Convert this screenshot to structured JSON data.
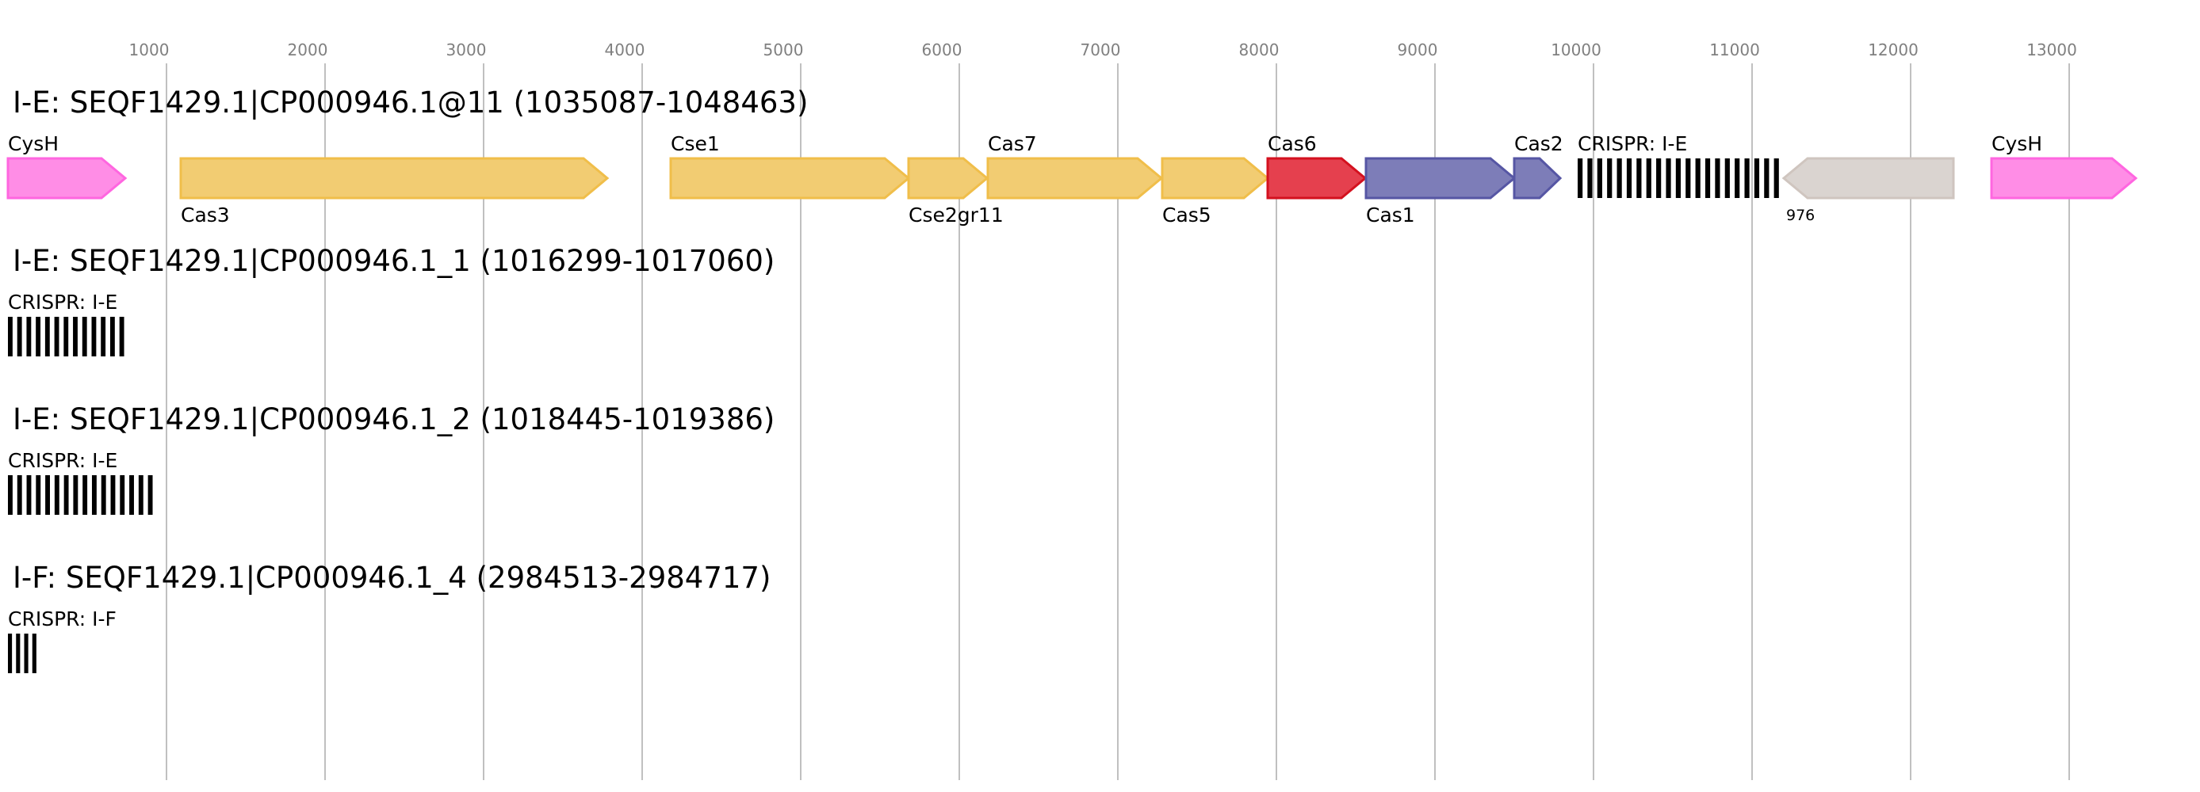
{
  "axis": {
    "ticks": [
      1000,
      2000,
      3000,
      4000,
      5000,
      6000,
      7000,
      8000,
      9000,
      10000,
      11000,
      12000,
      13000
    ],
    "tick_labels": [
      "1000",
      "2000",
      "3000",
      "4000",
      "5000",
      "6000",
      "7000",
      "8000",
      "9000",
      "10000",
      "11000",
      "12000",
      "13000"
    ]
  },
  "tracks": [
    {
      "title": "I-E: SEQF1429.1|CP000946.1@11 (1035087-1048463)",
      "features": [
        {
          "label": "CysH",
          "start": 0,
          "end": 740,
          "strand": 1,
          "type": "gene",
          "color": "#ff8de6",
          "stroke": "#ff66e0",
          "label_pos": "above"
        },
        {
          "label": "Cas3",
          "start": 1090,
          "end": 3780,
          "strand": 1,
          "type": "gene",
          "color": "#f2cc72",
          "stroke": "#f0be4a",
          "label_pos": "below"
        },
        {
          "label": "Cse1",
          "start": 4180,
          "end": 5680,
          "strand": 1,
          "type": "gene",
          "color": "#f2cc72",
          "stroke": "#f0be4a",
          "label_pos": "above"
        },
        {
          "label": "Cse2gr11",
          "start": 5680,
          "end": 6175,
          "strand": 1,
          "type": "gene",
          "color": "#f2cc72",
          "stroke": "#f0be4a",
          "label_pos": "below"
        },
        {
          "label": "Cas7",
          "start": 6180,
          "end": 7275,
          "strand": 1,
          "type": "gene",
          "color": "#f2cc72",
          "stroke": "#f0be4a",
          "label_pos": "above"
        },
        {
          "label": "Cas5",
          "start": 7280,
          "end": 7945,
          "strand": 1,
          "type": "gene",
          "color": "#f2cc72",
          "stroke": "#f0be4a",
          "label_pos": "below"
        },
        {
          "label": "Cas6",
          "start": 7945,
          "end": 8560,
          "strand": 1,
          "type": "gene",
          "color": "#e5404e",
          "stroke": "#d4111f",
          "label_pos": "above"
        },
        {
          "label": "Cas1",
          "start": 8565,
          "end": 9500,
          "strand": 1,
          "type": "gene",
          "color": "#7d7db8",
          "stroke": "#5656a4",
          "label_pos": "below"
        },
        {
          "label": "Cas2",
          "start": 9500,
          "end": 9790,
          "strand": 1,
          "type": "gene",
          "color": "#7d7db8",
          "stroke": "#5656a4",
          "label_pos": "above"
        },
        {
          "label": "CRISPR: I-E",
          "start": 9900,
          "end": 11200,
          "strand": 0,
          "type": "crispr",
          "bars": 21,
          "label_pos": "above"
        },
        {
          "label": "976",
          "start": 11200,
          "end": 12270,
          "strand": -1,
          "type": "gene",
          "color": "#dad4d0",
          "stroke": "#cfc5bf",
          "label_pos": "below-left-small"
        },
        {
          "label": "CysH",
          "start": 12510,
          "end": 13420,
          "strand": 1,
          "type": "gene",
          "color": "#ff8de6",
          "stroke": "#ff66e0",
          "label_pos": "above"
        }
      ]
    },
    {
      "title": "I-E: SEQF1429.1|CP000946.1_1 (1016299-1017060)",
      "features": [
        {
          "label": "CRISPR: I-E",
          "start": 0,
          "end": 762,
          "strand": 0,
          "type": "crispr",
          "bars": 13,
          "label_pos": "above"
        }
      ]
    },
    {
      "title": "I-E: SEQF1429.1|CP000946.1_2 (1018445-1019386)",
      "features": [
        {
          "label": "CRISPR: I-E",
          "start": 0,
          "end": 942,
          "strand": 0,
          "type": "crispr",
          "bars": 16,
          "label_pos": "above"
        }
      ]
    },
    {
      "title": "I-F: SEQF1429.1|CP000946.1_4 (2984513-2984717)",
      "features": [
        {
          "label": "CRISPR: I-F",
          "start": 0,
          "end": 205,
          "strand": 0,
          "type": "crispr",
          "bars": 4,
          "label_pos": "above"
        }
      ]
    }
  ]
}
